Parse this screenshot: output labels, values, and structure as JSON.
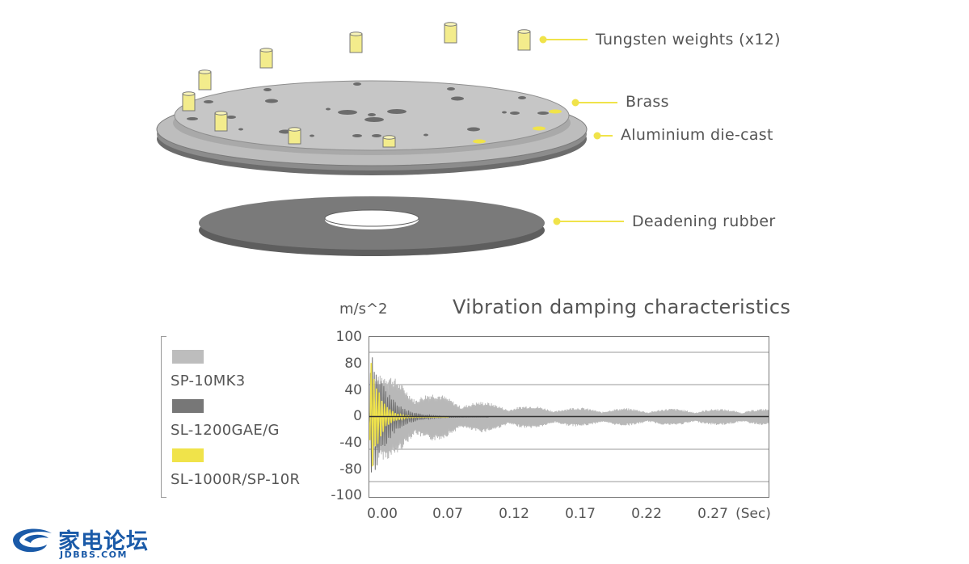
{
  "callouts": {
    "weights": "Tungsten weights (x12)",
    "brass": "Brass",
    "aluminium": "Aluminium die-cast",
    "rubber": "Deadening rubber"
  },
  "chart_data": {
    "type": "line",
    "title": "Vibration damping characteristics",
    "ylabel": "m/s^2",
    "xlabel": "",
    "x_unit_label": "(Sec)",
    "ylim": [
      -100,
      100
    ],
    "xlim": [
      0,
      0.3
    ],
    "yticks": [
      "100",
      "80",
      "40",
      "0",
      "-40",
      "-80",
      "-100"
    ],
    "xticks": [
      "0.00",
      "0.07",
      "0.12",
      "0.17",
      "0.22",
      "0.27"
    ],
    "grid": true,
    "legend_position": "left",
    "series": [
      {
        "name": "SP-10MK3",
        "color": "#b8b8b8",
        "peak_amplitude": 65,
        "late_amplitude": 10
      },
      {
        "name": "SL-1200GAE/G",
        "color": "#6e6e6e",
        "peak_amplitude": 88,
        "late_amplitude": 0
      },
      {
        "name": "SL-1000R/SP-10R",
        "color": "#f0e34a",
        "peak_amplitude": 72,
        "late_amplitude": 0
      }
    ]
  },
  "colors": {
    "accent_yellow": "#f0e34a",
    "text": "#555555",
    "plate_top": "#c2c2c2",
    "plate_edge": "#8a8a8a",
    "rubber": "#737373"
  },
  "logo": {
    "main": "家电论坛",
    "sub": "JDBBS.COM"
  }
}
